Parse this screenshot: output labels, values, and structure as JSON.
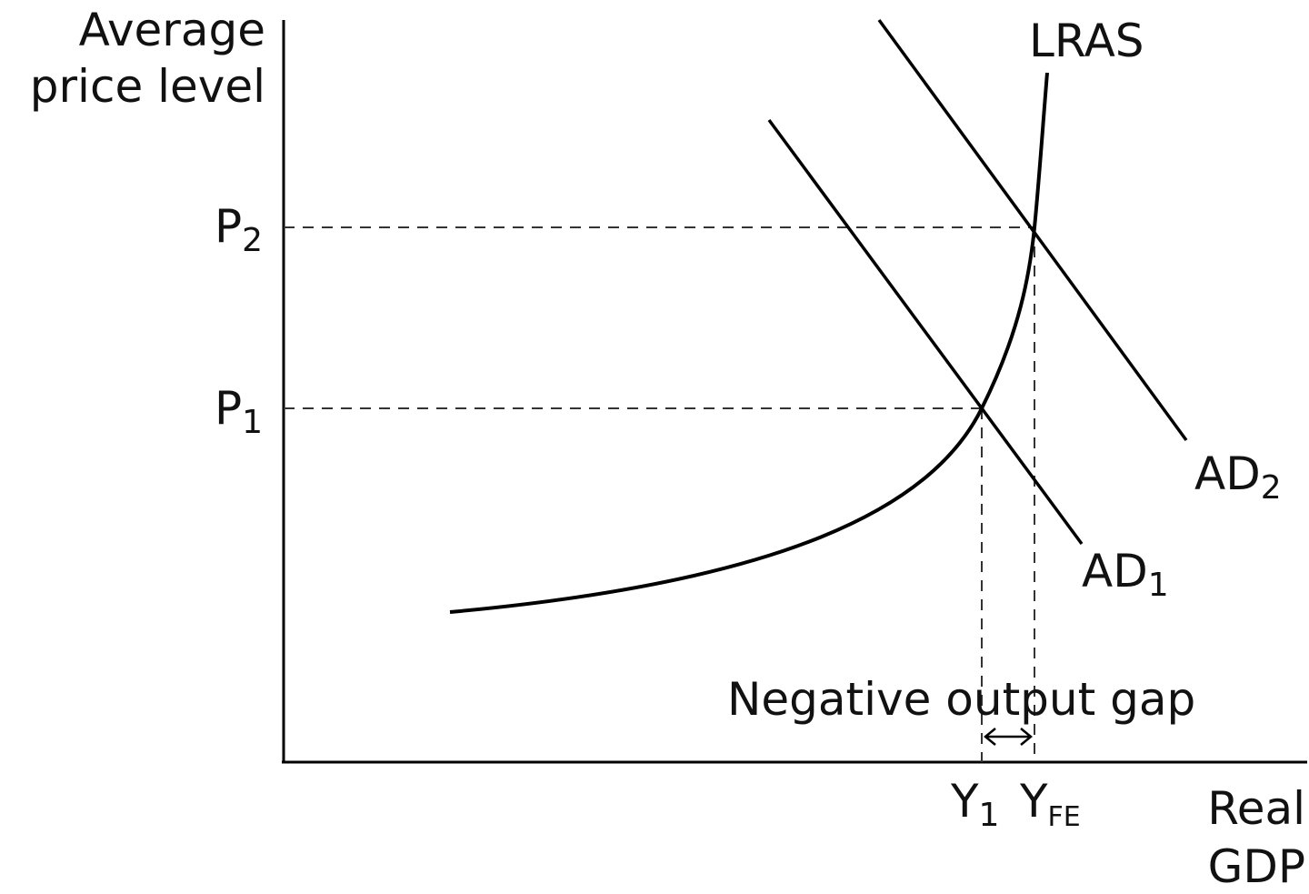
{
  "axes": {
    "y_label_line1": "Average",
    "y_label_line2": "price level",
    "x_label_line1": "Real",
    "x_label_line2": "GDP"
  },
  "price_levels": [
    {
      "base": "P",
      "sub": "2"
    },
    {
      "base": "P",
      "sub": "1"
    }
  ],
  "output_levels": [
    {
      "base": "Y",
      "sub": "1"
    },
    {
      "base": "Y",
      "sub": "FE"
    }
  ],
  "curves": {
    "lras": {
      "label": "LRAS"
    },
    "ad1": {
      "base": "AD",
      "sub": "1"
    },
    "ad2": {
      "base": "AD",
      "sub": "2"
    }
  },
  "annotation": "Negative output gap",
  "colors": {
    "line": "#000000",
    "dashed": "#333333",
    "text": "#111111"
  }
}
